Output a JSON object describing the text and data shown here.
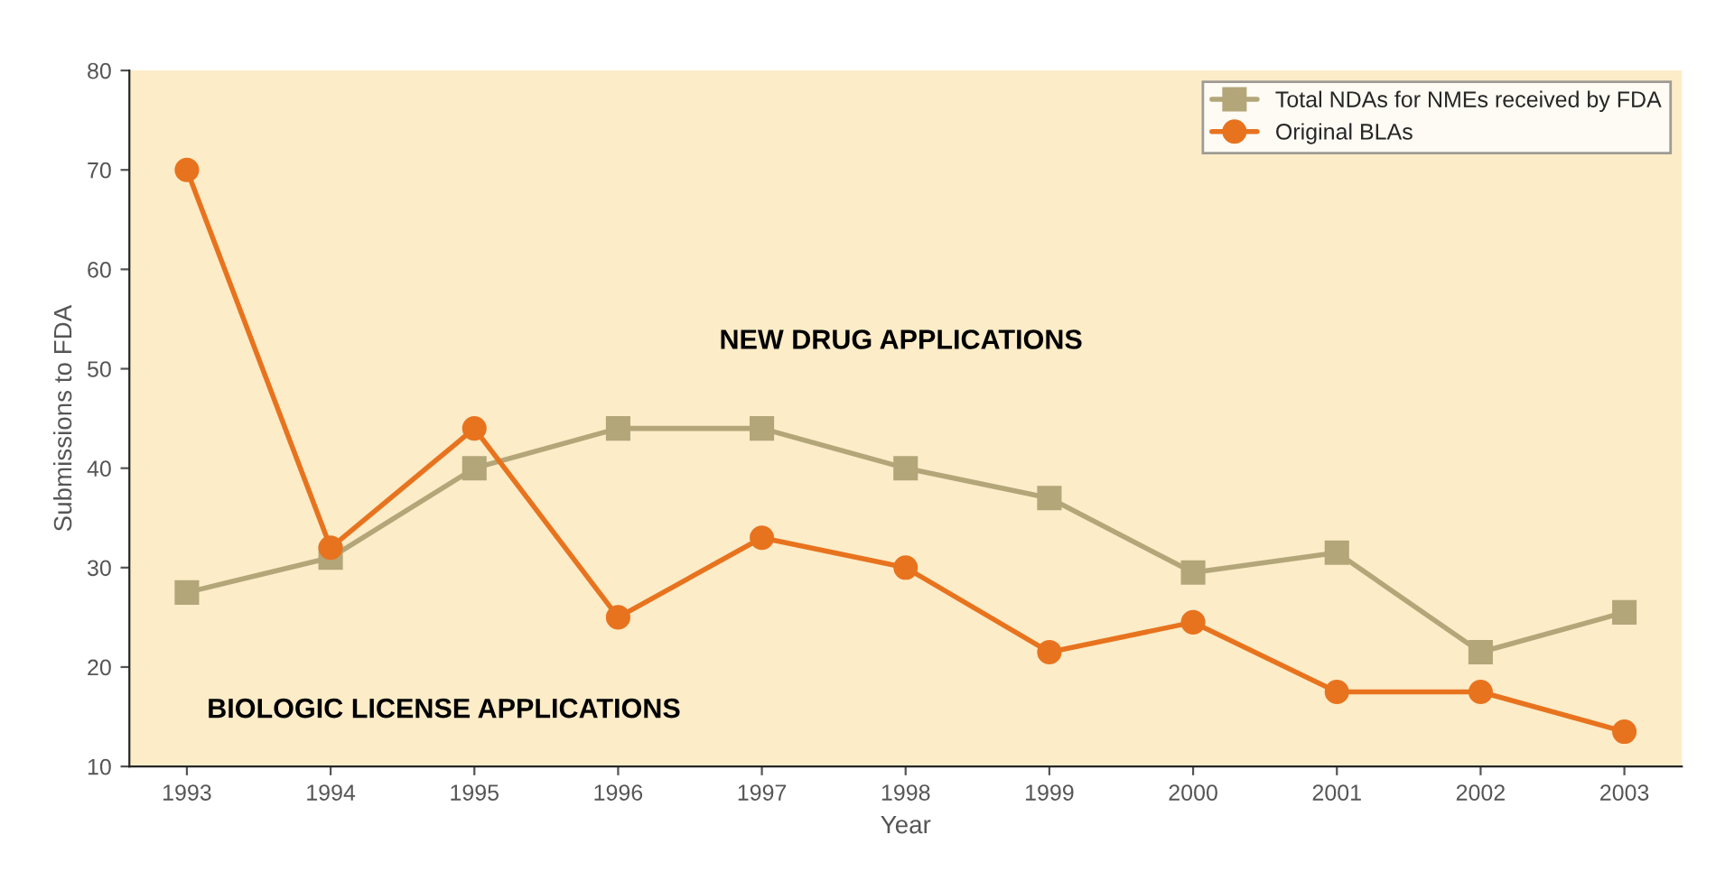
{
  "chart_data": {
    "type": "line",
    "xlabel": "Year",
    "ylabel": "Submissions to FDA",
    "categories": [
      "1993",
      "1994",
      "1995",
      "1996",
      "1997",
      "1998",
      "1999",
      "2000",
      "2001",
      "2002",
      "2003"
    ],
    "series": [
      {
        "name": "Total NDAs for NMEs received by FDA",
        "color": "#b3a679",
        "marker": "square",
        "values": [
          27.5,
          31,
          40,
          44,
          44,
          40,
          37,
          29.5,
          31.5,
          21.5,
          25.5
        ]
      },
      {
        "name": "Original BLAs",
        "color": "#e8731e",
        "marker": "circle",
        "values": [
          70,
          32,
          44,
          25,
          33,
          30,
          21.5,
          24.5,
          17.5,
          17.5,
          13.5
        ]
      }
    ],
    "ylim": [
      10,
      80
    ],
    "yticks": [
      10,
      20,
      30,
      40,
      50,
      60,
      70,
      80
    ],
    "annotations": [
      "NEW DRUG APPLICATIONS",
      "BIOLOGIC LICENSE APPLICATIONS"
    ],
    "legend": "top right",
    "grid": false,
    "line_style": "solid"
  }
}
